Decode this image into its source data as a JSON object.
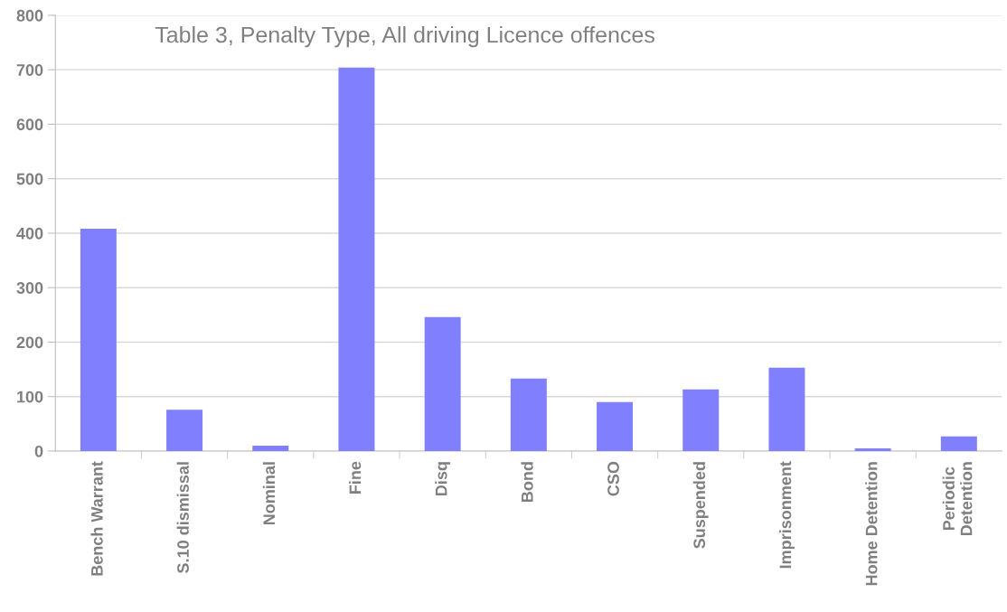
{
  "chart_data": {
    "type": "bar",
    "title": "Table 3, Penalty Type, All driving Licence offences",
    "categories": [
      "Bench Warrant",
      "S.10 dismissal",
      "Nominal",
      "Fine",
      "Disq",
      "Bond",
      "CSO",
      "Suspended",
      "Imprisonment",
      "Home Detention",
      "Periodic\nDetention"
    ],
    "values": [
      408,
      76,
      10,
      704,
      246,
      133,
      90,
      113,
      153,
      5,
      27
    ],
    "color": "#8080ff",
    "ylim": [
      0,
      800
    ],
    "yticks": [
      0,
      100,
      200,
      300,
      400,
      500,
      600,
      700,
      800
    ],
    "grid": "y"
  }
}
